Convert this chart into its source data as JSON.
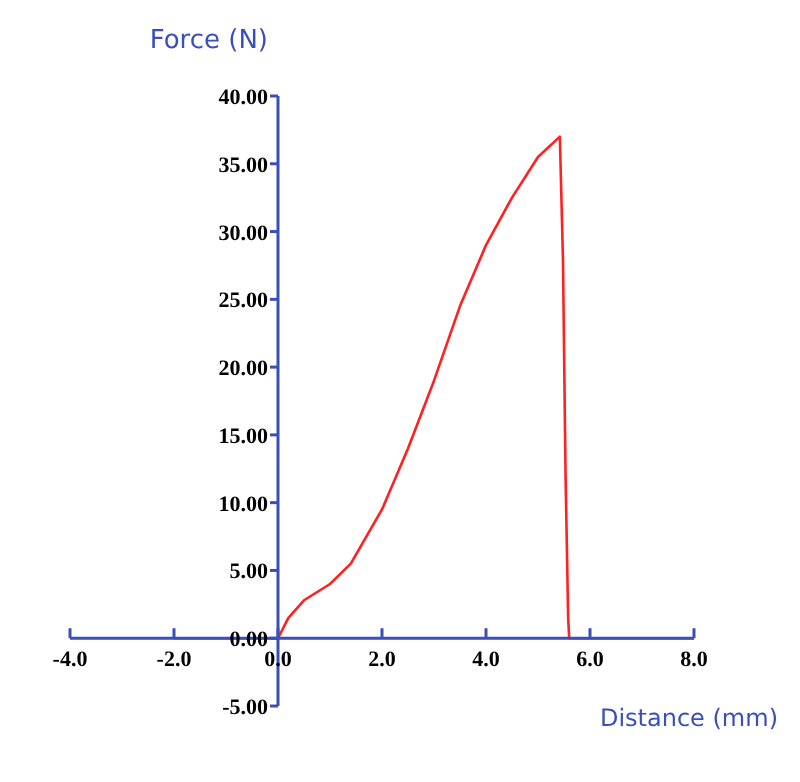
{
  "chart_data": {
    "type": "line",
    "xlabel": "Distance (mm)",
    "ylabel": "Force (N)",
    "xlim": [
      -4,
      8
    ],
    "ylim": [
      -5,
      40
    ],
    "xticks": [
      {
        "value": -4,
        "label": "-4.0"
      },
      {
        "value": -2,
        "label": "-2.0"
      },
      {
        "value": 0,
        "label": "0.0"
      },
      {
        "value": 2,
        "label": "2.0"
      },
      {
        "value": 4,
        "label": "4.0"
      },
      {
        "value": 6,
        "label": "6.0"
      },
      {
        "value": 8,
        "label": "8.0"
      }
    ],
    "yticks": [
      {
        "value": -5,
        "label": "-5.00"
      },
      {
        "value": 0,
        "label": "0.00"
      },
      {
        "value": 5,
        "label": "5.00"
      },
      {
        "value": 10,
        "label": "10.00"
      },
      {
        "value": 15,
        "label": "15.00"
      },
      {
        "value": 20,
        "label": "20.00"
      },
      {
        "value": 25,
        "label": "25.00"
      },
      {
        "value": 30,
        "label": "30.00"
      },
      {
        "value": 35,
        "label": "35.00"
      },
      {
        "value": 40,
        "label": "40.00"
      }
    ],
    "grid": false,
    "legend": false,
    "marker": "none",
    "line_style": "solid",
    "series": [
      {
        "color": "#ff2020",
        "x": [
          -2,
          0,
          0.2,
          0.5,
          1.0,
          1.4,
          2.0,
          2.5,
          3.0,
          3.5,
          4.0,
          4.5,
          5.0,
          5.42,
          5.48,
          5.53,
          5.58,
          5.6,
          8
        ],
        "values": [
          0,
          0,
          1.5,
          2.8,
          4,
          5.5,
          9.5,
          14,
          19,
          24.5,
          29,
          32.5,
          35.5,
          37,
          28,
          12,
          1.5,
          0,
          0
        ]
      }
    ]
  }
}
